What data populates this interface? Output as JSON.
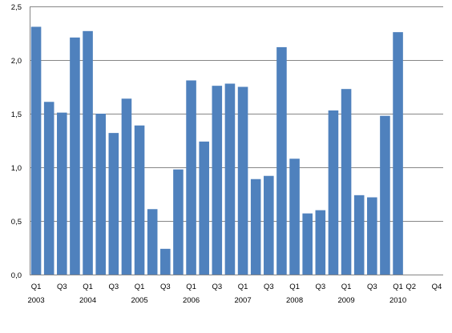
{
  "chart_data": {
    "type": "bar",
    "title": "",
    "xlabel": "",
    "ylabel": "",
    "ylim": [
      0,
      2.5
    ],
    "yticks": [
      "0,0",
      "0,5",
      "1,0",
      "1,5",
      "2,0",
      "2,5"
    ],
    "grid": true,
    "legend": "none",
    "bar_color": "#4f81bd",
    "grid_color": "#878787",
    "categories": [
      "Q1 2003",
      "Q2 2003",
      "Q3 2003",
      "Q4 2003",
      "Q1 2004",
      "Q2 2004",
      "Q3 2004",
      "Q4 2004",
      "Q1 2005",
      "Q2 2005",
      "Q3 2005",
      "Q4 2005",
      "Q1 2006",
      "Q2 2006",
      "Q3 2006",
      "Q4 2006",
      "Q1 2007",
      "Q2 2007",
      "Q3 2007",
      "Q4 2007",
      "Q1 2008",
      "Q2 2008",
      "Q3 2008",
      "Q4 2008",
      "Q1 2009",
      "Q2 2009",
      "Q3 2009",
      "Q4 2009",
      "Q1 2010",
      "Q2 2010",
      "Q3 2010",
      "Q4 2010"
    ],
    "values": [
      2.31,
      1.61,
      1.51,
      2.21,
      2.27,
      1.5,
      1.32,
      1.64,
      1.39,
      0.61,
      0.24,
      0.98,
      1.81,
      1.24,
      1.76,
      1.78,
      1.75,
      0.89,
      0.92,
      2.12,
      1.08,
      0.57,
      0.6,
      1.53,
      1.73,
      0.74,
      0.72,
      1.48,
      2.26,
      null,
      null,
      null
    ],
    "x_tick_labels": [
      "Q1",
      "",
      "Q3",
      "",
      "Q1",
      "",
      "Q3",
      "",
      "Q1",
      "",
      "Q3",
      "",
      "Q1",
      "",
      "Q3",
      "",
      "Q1",
      "",
      "Q3",
      "",
      "Q1",
      "",
      "Q3",
      "",
      "Q1",
      "",
      "Q3",
      "",
      "Q1",
      "Q2",
      "",
      "Q4"
    ],
    "year_labels": [
      {
        "index": 0,
        "label": "2003"
      },
      {
        "index": 4,
        "label": "2004"
      },
      {
        "index": 8,
        "label": "2005"
      },
      {
        "index": 12,
        "label": "2006"
      },
      {
        "index": 16,
        "label": "2007"
      },
      {
        "index": 20,
        "label": "2008"
      },
      {
        "index": 24,
        "label": "2009"
      },
      {
        "index": 28,
        "label": "2010"
      }
    ]
  }
}
